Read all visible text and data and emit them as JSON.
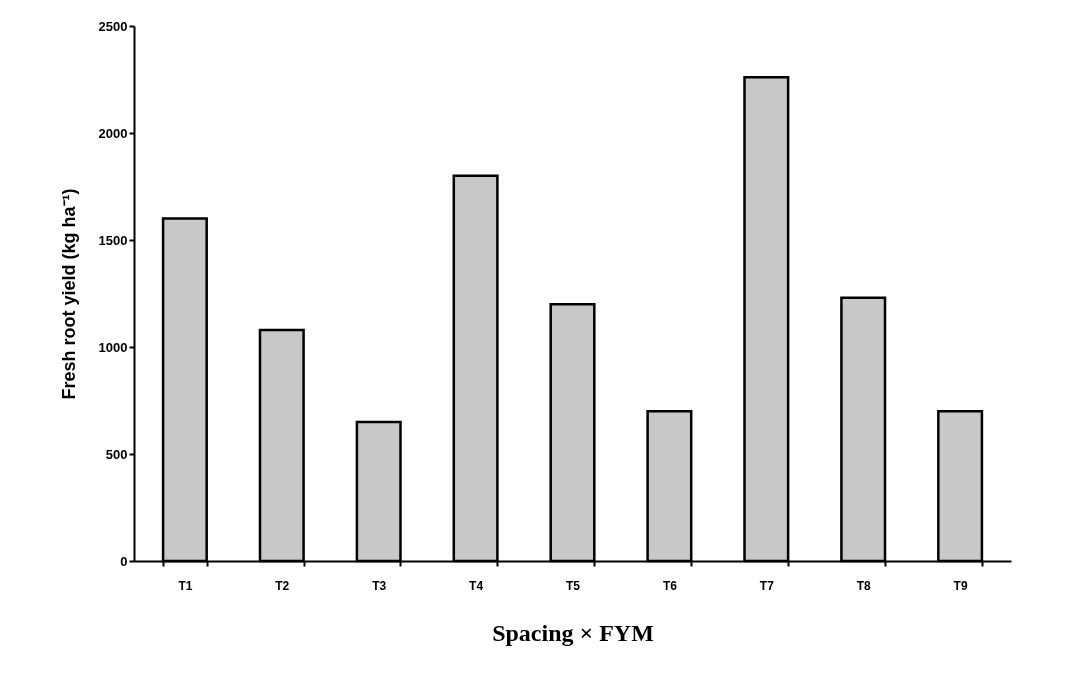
{
  "chart_data": {
    "type": "bar",
    "xlabel": "Spacing × FYM",
    "ylabel": "Fresh root yield (kg ha⁻¹)",
    "categories": [
      "T1",
      "T2",
      "T3",
      "T4",
      "T5",
      "T6",
      "T7",
      "T8",
      "T9"
    ],
    "values": [
      1600,
      1080,
      650,
      1800,
      1200,
      700,
      2260,
      1230,
      700
    ],
    "color": "#c8c8c8",
    "ylim": [
      0,
      2500
    ],
    "yticks": [
      0,
      500,
      1000,
      1500,
      2000,
      2500
    ],
    "grid": false
  }
}
